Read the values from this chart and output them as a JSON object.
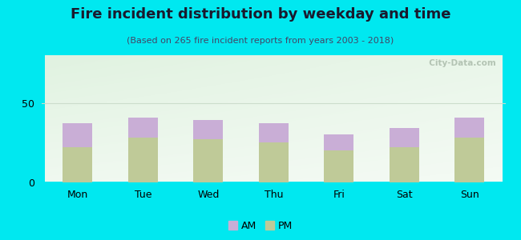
{
  "title": "Fire incident distribution by weekday and time",
  "subtitle": "(Based on 265 fire incident reports from years 2003 - 2018)",
  "days": [
    "Mon",
    "Tue",
    "Wed",
    "Thu",
    "Fri",
    "Sat",
    "Sun"
  ],
  "pm_values": [
    22,
    28,
    27,
    25,
    20,
    22,
    28
  ],
  "am_values": [
    15,
    13,
    12,
    12,
    10,
    12,
    13
  ],
  "am_color": "#c9aed6",
  "pm_color": "#bfca98",
  "background_outer": "#00e8f0",
  "ylim": [
    0,
    80
  ],
  "yticks": [
    0,
    50
  ],
  "bar_width": 0.45,
  "watermark": "  City-Data.com",
  "title_fontsize": 13,
  "subtitle_fontsize": 8,
  "tick_fontsize": 9,
  "legend_fontsize": 9,
  "panel_color": "#f0f8f0"
}
